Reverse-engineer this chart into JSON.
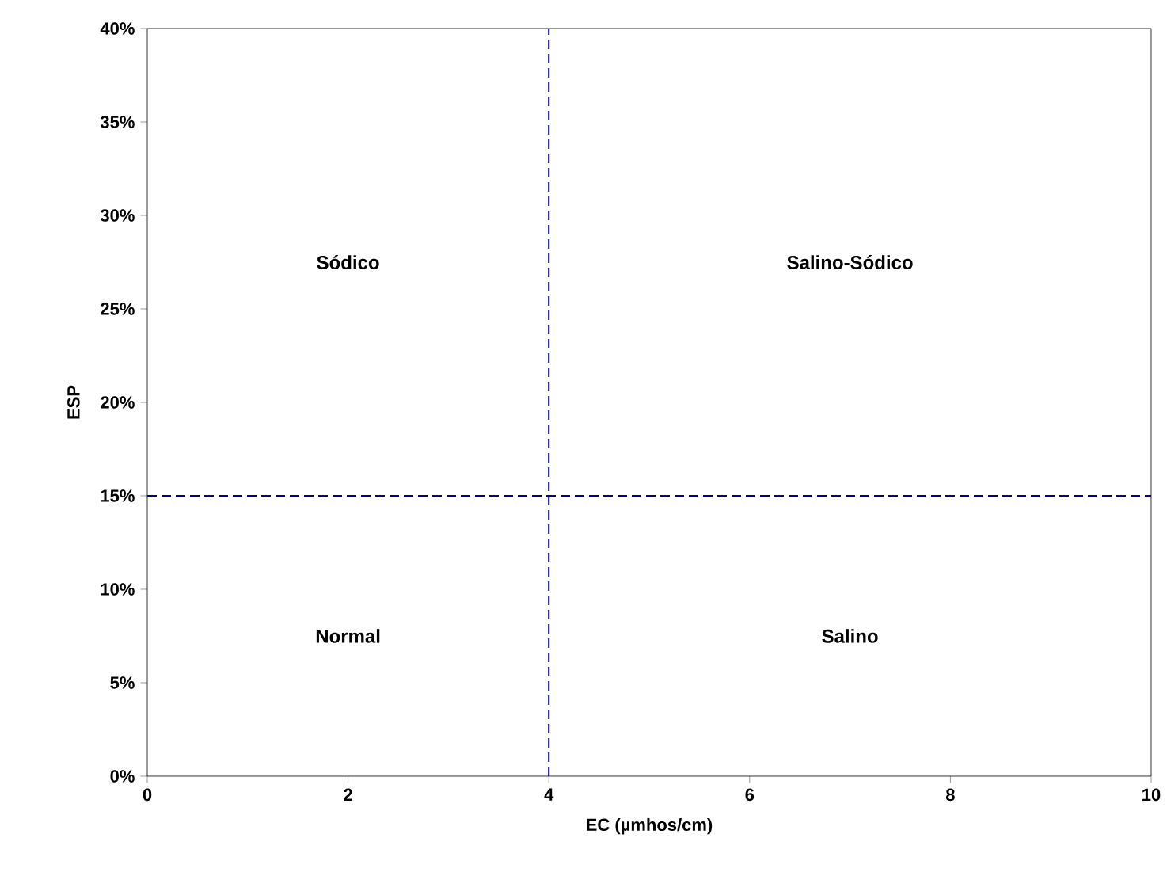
{
  "chart_data": {
    "type": "scatter",
    "xlabel": "EC (µmhos/cm)",
    "ylabel": "ESP",
    "xlim": [
      0,
      10
    ],
    "xticks": [
      0,
      2,
      4,
      6,
      8,
      10
    ],
    "ylim": [
      0,
      40
    ],
    "yticks": [
      {
        "value": 0,
        "label": "0%"
      },
      {
        "value": 5,
        "label": "5%"
      },
      {
        "value": 10,
        "label": "10%"
      },
      {
        "value": 15,
        "label": "15%"
      },
      {
        "value": 20,
        "label": "20%"
      },
      {
        "value": 25,
        "label": "25%"
      },
      {
        "value": 30,
        "label": "30%"
      },
      {
        "value": 35,
        "label": "35%"
      },
      {
        "value": 40,
        "label": "40%"
      }
    ],
    "ref_lines": [
      {
        "axis": "x",
        "value": 4,
        "color": "#000080",
        "line_style": "dashed"
      },
      {
        "axis": "y",
        "value": 15,
        "color": "#000080",
        "line_style": "dashed"
      }
    ],
    "annotations": [
      "Sódico",
      "Salino-Sódico",
      "Normal",
      "Salino"
    ],
    "grid": false
  }
}
